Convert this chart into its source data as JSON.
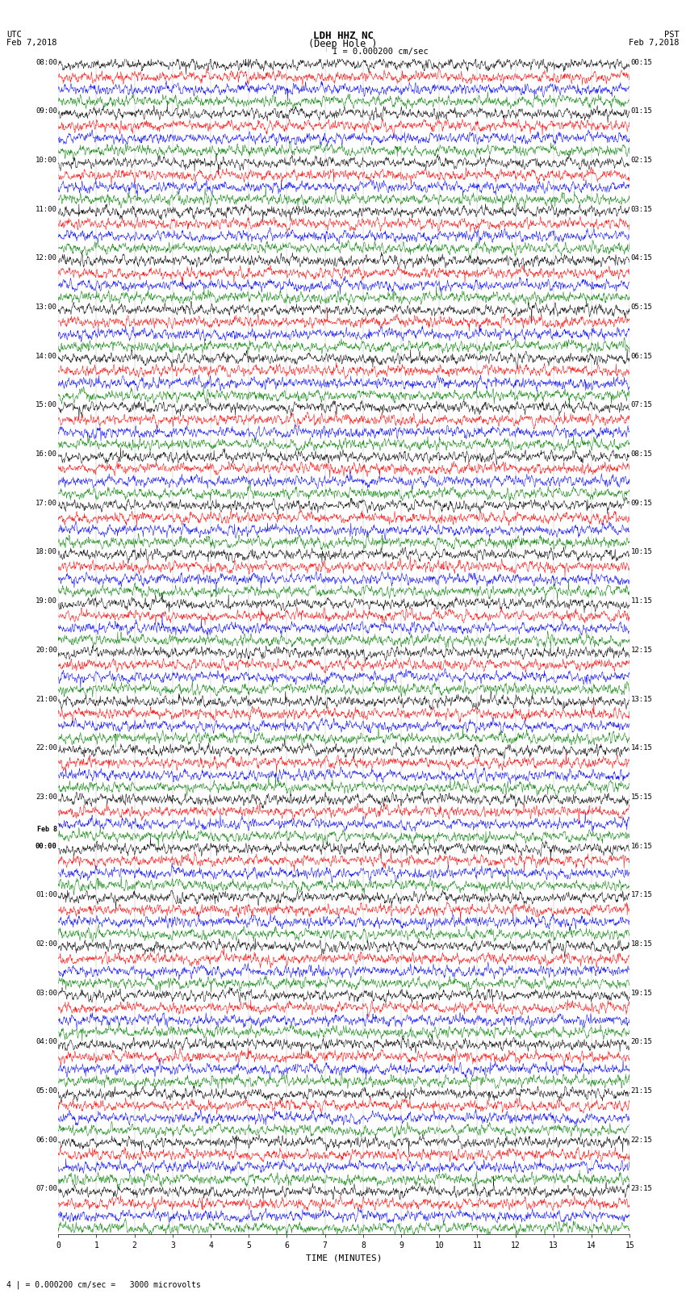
{
  "title_line1": "LDH HHZ NC",
  "title_line2": "(Deep Hole )",
  "scale_label": "I = 0.000200 cm/sec",
  "footer_label": "4 | = 0.000200 cm/sec =   3000 microvolts",
  "xlabel": "TIME (MINUTES)",
  "utc_header1": "UTC",
  "utc_header2": "Feb 7,2018",
  "pst_header1": "PST",
  "pst_header2": "Feb 7,2018",
  "segment_duration_min": 15,
  "colors": [
    "black",
    "red",
    "blue",
    "green"
  ],
  "bg_color": "white",
  "line_width": 0.35,
  "noise_amplitude": 0.06,
  "spike_prob": 0.0015,
  "spike_amplitude": 0.35,
  "fig_width": 8.5,
  "fig_height": 16.13,
  "dpi": 100,
  "left_times": [
    "08:00",
    "09:00",
    "10:00",
    "11:00",
    "12:00",
    "13:00",
    "14:00",
    "15:00",
    "16:00",
    "17:00",
    "18:00",
    "19:00",
    "20:00",
    "21:00",
    "22:00",
    "23:00",
    "Feb 8\n00:00",
    "01:00",
    "02:00",
    "03:00",
    "04:00",
    "05:00",
    "06:00",
    "07:00"
  ],
  "right_times": [
    "00:15",
    "01:15",
    "02:15",
    "03:15",
    "04:15",
    "05:15",
    "06:15",
    "07:15",
    "08:15",
    "09:15",
    "10:15",
    "11:15",
    "12:15",
    "13:15",
    "14:15",
    "15:15",
    "16:15",
    "17:15",
    "18:15",
    "19:15",
    "20:15",
    "21:15",
    "22:15",
    "23:15"
  ],
  "num_time_labels": 24,
  "num_colors": 4,
  "n_points": 1800,
  "random_seed": 42,
  "special_group": 19,
  "special_noise_mult": 5.0,
  "grid_color": "#aaaaaa",
  "grid_lw": 0.3
}
